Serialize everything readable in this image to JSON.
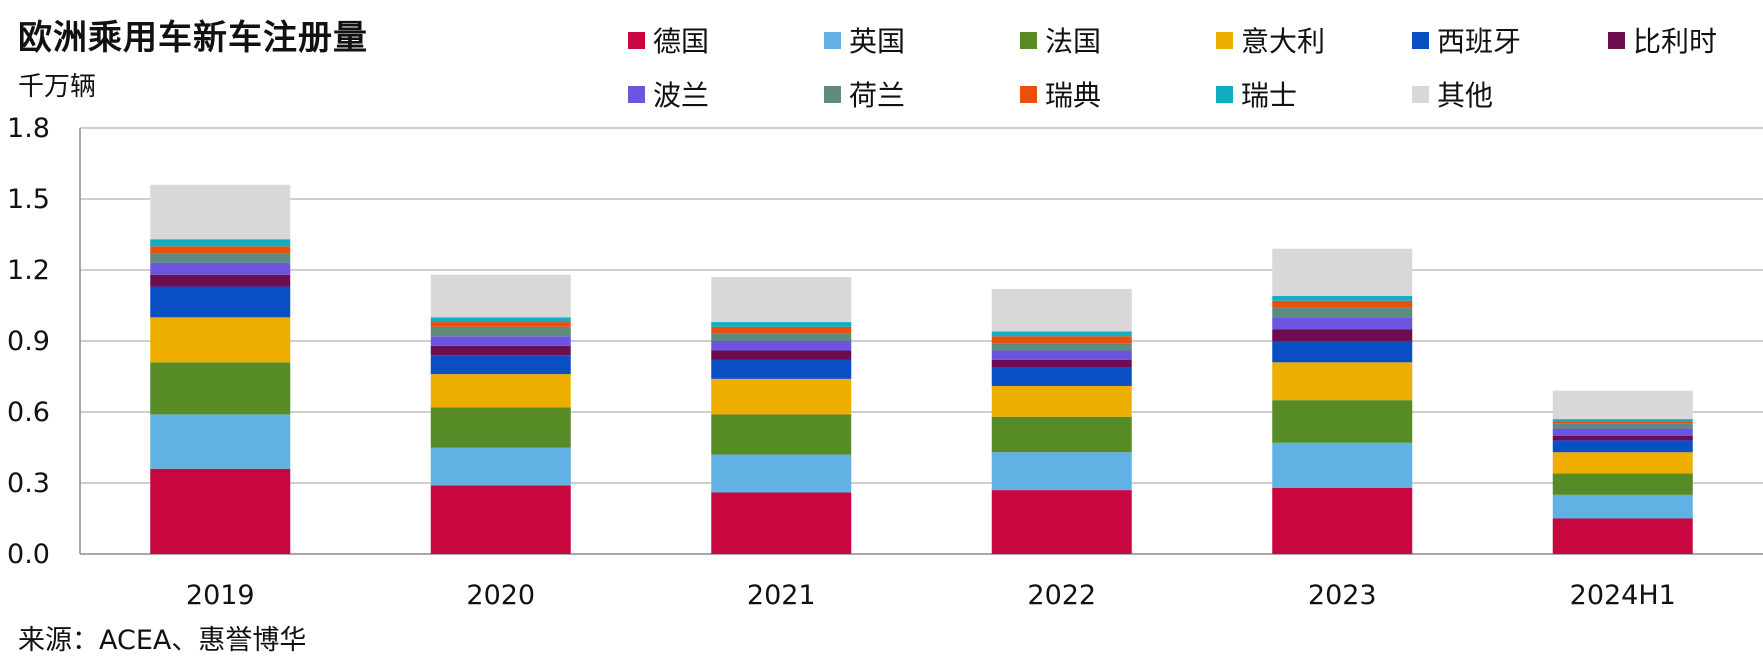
{
  "header": {
    "title": "欧洲乘用车新车注册量",
    "unit": "千万辆"
  },
  "footer": {
    "source": "来源：ACEA、惠誉博华"
  },
  "chart_data": {
    "type": "bar",
    "stacked": true,
    "title": "欧洲乘用车新车注册量",
    "ylabel": "千万辆",
    "xlabel": "",
    "ylim": [
      0,
      1.8
    ],
    "yticks": [
      "0.0",
      "0.3",
      "0.6",
      "0.9",
      "1.2",
      "1.5",
      "1.8"
    ],
    "grid": true,
    "legend_position": "top-right",
    "categories": [
      "2019",
      "2020",
      "2021",
      "2022",
      "2023",
      "2024H1"
    ],
    "series": [
      {
        "name": "德国",
        "color": "#c8063f",
        "values": [
          0.36,
          0.29,
          0.26,
          0.27,
          0.28,
          0.15
        ]
      },
      {
        "name": "英国",
        "color": "#62b1e4",
        "values": [
          0.23,
          0.16,
          0.16,
          0.16,
          0.19,
          0.1
        ]
      },
      {
        "name": "法国",
        "color": "#568b26",
        "values": [
          0.22,
          0.17,
          0.17,
          0.15,
          0.18,
          0.09
        ]
      },
      {
        "name": "意大利",
        "color": "#edae00",
        "values": [
          0.19,
          0.14,
          0.15,
          0.13,
          0.16,
          0.09
        ]
      },
      {
        "name": "西班牙",
        "color": "#0a4ec4",
        "values": [
          0.13,
          0.08,
          0.08,
          0.08,
          0.09,
          0.05
        ]
      },
      {
        "name": "比利时",
        "color": "#6b0d4e",
        "values": [
          0.05,
          0.04,
          0.04,
          0.03,
          0.05,
          0.02
        ]
      },
      {
        "name": "波兰",
        "color": "#6a54e0",
        "values": [
          0.05,
          0.04,
          0.04,
          0.04,
          0.05,
          0.03
        ]
      },
      {
        "name": "荷兰",
        "color": "#5e8b80",
        "values": [
          0.04,
          0.04,
          0.03,
          0.03,
          0.04,
          0.02
        ]
      },
      {
        "name": "瑞典",
        "color": "#ea500c",
        "values": [
          0.03,
          0.02,
          0.03,
          0.03,
          0.03,
          0.01
        ]
      },
      {
        "name": "瑞士",
        "color": "#12adc1",
        "values": [
          0.03,
          0.02,
          0.02,
          0.02,
          0.02,
          0.01
        ]
      },
      {
        "name": "其他",
        "color": "#d8d8d8",
        "values": [
          0.23,
          0.18,
          0.19,
          0.18,
          0.2,
          0.12
        ]
      }
    ]
  }
}
